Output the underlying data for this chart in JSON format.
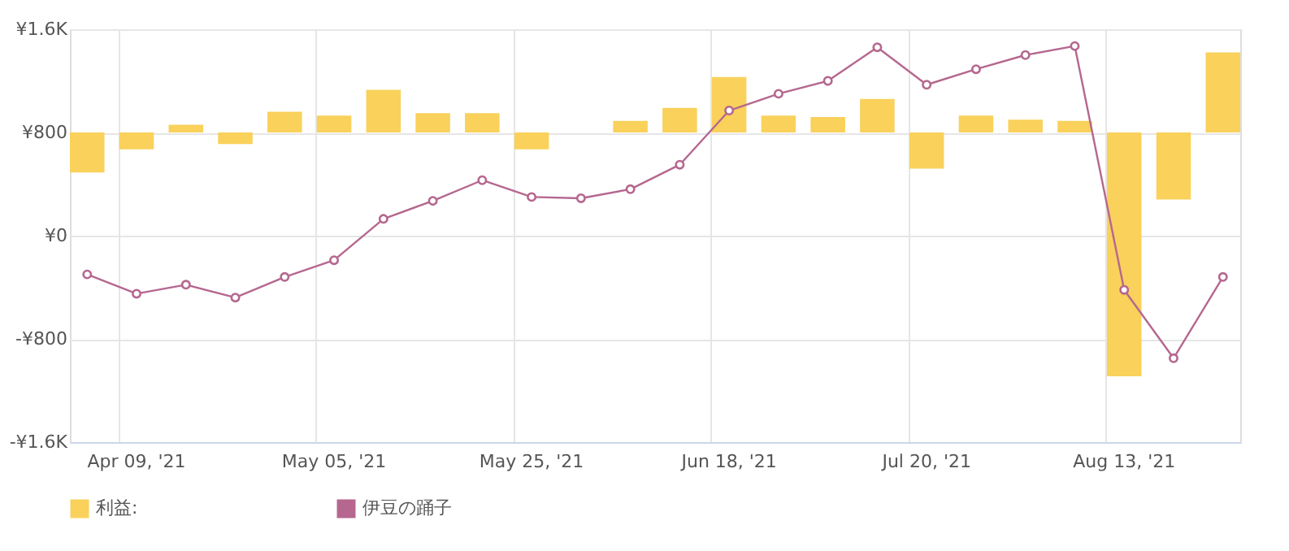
{
  "chart_data": {
    "type": "bar",
    "categories": [
      null,
      "Apr 09, '21",
      null,
      null,
      null,
      "May 05, '21",
      null,
      null,
      null,
      "May 25, '21",
      null,
      null,
      null,
      "Jun 18, '21",
      null,
      null,
      null,
      "Jul 20, '21",
      null,
      null,
      null,
      "Aug 13, '21",
      null,
      null
    ],
    "series": [
      {
        "name": "利益:",
        "color": "#f9d15b",
        "base": [
          800,
          800,
          800,
          800,
          800,
          800,
          800,
          800,
          800,
          800,
          null,
          800,
          800,
          800,
          800,
          800,
          800,
          800,
          800,
          800,
          800,
          800,
          800,
          800
        ],
        "values": [
          -310,
          -130,
          60,
          -90,
          160,
          130,
          330,
          150,
          150,
          -130,
          null,
          90,
          190,
          430,
          130,
          120,
          260,
          -280,
          130,
          100,
          90,
          -1890,
          -520,
          620
        ]
      },
      {
        "name": "伊豆の踊子",
        "type": "line",
        "color": "#b5678f",
        "marker": "circle",
        "values": [
          -300,
          -450,
          -380,
          -480,
          -320,
          -190,
          130,
          270,
          430,
          300,
          290,
          360,
          550,
          970,
          1100,
          1200,
          1460,
          1170,
          1290,
          1400,
          1470,
          -420,
          -950,
          -320
        ]
      }
    ],
    "ylim": [
      -1600,
      1600
    ],
    "yticks": [
      {
        "value": -1600,
        "label": "-¥1.6K"
      },
      {
        "value": -800,
        "label": "-¥800"
      },
      {
        "value": 0,
        "label": "¥0"
      },
      {
        "value": 800,
        "label": "¥800"
      },
      {
        "value": 1600,
        "label": "¥1.6K"
      }
    ],
    "grid": true,
    "legend": "bottom"
  }
}
